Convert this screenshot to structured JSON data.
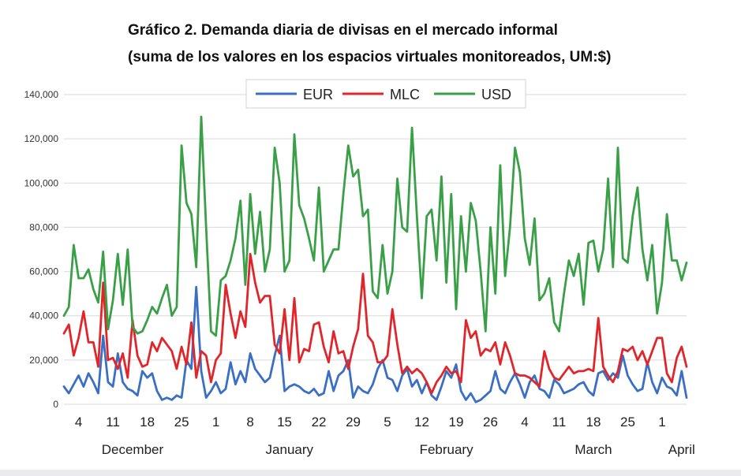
{
  "chart_data": {
    "type": "line",
    "title": "Gráfico 2. Demanda diaria de divisas en el mercado informal",
    "subtitle": "(suma de los valores en los espacios virtuales monitoreados, UM:$)",
    "xlabel": "",
    "ylabel": "",
    "ylim": [
      0,
      140000
    ],
    "y_ticks": [
      0,
      20000,
      40000,
      60000,
      80000,
      100000,
      120000,
      140000
    ],
    "y_tick_labels": [
      "0",
      "20,000",
      "40,000",
      "60,000",
      "80,000",
      "100,000",
      "120,000",
      "140,000"
    ],
    "x_start_day": 1,
    "x_end_day": 128,
    "x_ticks": [
      {
        "day": 4,
        "label": "4"
      },
      {
        "day": 11,
        "label": "11"
      },
      {
        "day": 18,
        "label": "18"
      },
      {
        "day": 25,
        "label": "25"
      },
      {
        "day": 32,
        "label": "1"
      },
      {
        "day": 39,
        "label": "8"
      },
      {
        "day": 46,
        "label": "15"
      },
      {
        "day": 53,
        "label": "22"
      },
      {
        "day": 60,
        "label": "29"
      },
      {
        "day": 67,
        "label": "5"
      },
      {
        "day": 74,
        "label": "12"
      },
      {
        "day": 81,
        "label": "19"
      },
      {
        "day": 88,
        "label": "26"
      },
      {
        "day": 95,
        "label": "4"
      },
      {
        "day": 102,
        "label": "11"
      },
      {
        "day": 109,
        "label": "18"
      },
      {
        "day": 116,
        "label": "25"
      },
      {
        "day": 123,
        "label": "1"
      }
    ],
    "month_labels": [
      {
        "day": 15,
        "label": "December"
      },
      {
        "day": 47,
        "label": "January"
      },
      {
        "day": 79,
        "label": "February"
      },
      {
        "day": 109,
        "label": "March"
      },
      {
        "day": 127,
        "label": "April"
      }
    ],
    "legend_position": "top",
    "grid": true,
    "series": [
      {
        "name": "EUR",
        "color": "#3a6fc4",
        "values": [
          8000,
          5000,
          9000,
          13000,
          8000,
          14000,
          10000,
          5000,
          31000,
          10000,
          8000,
          23000,
          10000,
          7000,
          6000,
          4000,
          15000,
          12000,
          14000,
          6000,
          2000,
          3000,
          2000,
          4000,
          3000,
          20000,
          16000,
          53000,
          15000,
          3000,
          6000,
          10000,
          5000,
          7000,
          19000,
          9000,
          15000,
          10000,
          23000,
          16000,
          13000,
          10000,
          12000,
          22000,
          31000,
          6000,
          8000,
          9000,
          8000,
          6000,
          5000,
          7000,
          4000,
          5000,
          15000,
          6000,
          13000,
          15000,
          20000,
          3000,
          8000,
          6000,
          5000,
          9000,
          16000,
          20000,
          12000,
          11000,
          6000,
          13000,
          16000,
          8000,
          11000,
          5000,
          10000,
          4000,
          2000,
          8000,
          15000,
          12000,
          18000,
          6000,
          2000,
          5000,
          1000,
          2000,
          4000,
          6000,
          15000,
          7000,
          5000,
          10000,
          14000,
          9000,
          3000,
          10000,
          13000,
          7000,
          6000,
          3000,
          11000,
          9000,
          5000,
          6000,
          7000,
          9000,
          10000,
          6000,
          4000,
          14000,
          15000,
          11000,
          14000,
          12000,
          22000,
          13000,
          9000,
          6000,
          7000,
          19000,
          10000,
          5000,
          12000,
          8000,
          7000,
          4000,
          15000,
          3000
        ]
      },
      {
        "name": "MLC",
        "color": "#e0262a",
        "values": [
          32000,
          36000,
          22000,
          30000,
          42000,
          28000,
          28000,
          17000,
          55000,
          20000,
          21000,
          16000,
          23000,
          12000,
          38000,
          22000,
          17000,
          18000,
          28000,
          24000,
          30000,
          27000,
          24000,
          16000,
          26000,
          18000,
          37000,
          12000,
          24000,
          22000,
          10000,
          20000,
          23000,
          54000,
          41000,
          30000,
          42000,
          35000,
          68000,
          55000,
          46000,
          49000,
          49000,
          27000,
          23000,
          43000,
          20000,
          48000,
          19000,
          25000,
          24000,
          36000,
          37000,
          26000,
          19000,
          33000,
          23000,
          24000,
          16000,
          26000,
          34000,
          59000,
          31000,
          28000,
          19000,
          19000,
          22000,
          43000,
          27000,
          14000,
          17000,
          14000,
          16000,
          14000,
          10000,
          5000,
          10000,
          13000,
          17000,
          14000,
          15000,
          10000,
          38000,
          30000,
          33000,
          22000,
          25000,
          24000,
          28000,
          18000,
          28000,
          22000,
          14000,
          13000,
          13000,
          12000,
          10000,
          8000,
          24000,
          16000,
          12000,
          11000,
          14000,
          17000,
          14000,
          15000,
          15000,
          16000,
          15000,
          39000,
          17000,
          13000,
          10000,
          15000,
          25000,
          24000,
          26000,
          20000,
          24000,
          18000,
          24000,
          30000,
          30000,
          14000,
          10000,
          21000,
          26000,
          17000
        ]
      },
      {
        "name": "USD",
        "color": "#3aa048",
        "values": [
          40000,
          44000,
          72000,
          57000,
          57000,
          61000,
          52000,
          46000,
          69000,
          34000,
          47000,
          68000,
          45000,
          70000,
          35000,
          32000,
          33000,
          38000,
          44000,
          41000,
          48000,
          54000,
          40000,
          44000,
          117000,
          91000,
          86000,
          62000,
          130000,
          80000,
          33000,
          31000,
          56000,
          58000,
          65000,
          75000,
          92000,
          54000,
          95000,
          68000,
          87000,
          60000,
          70000,
          116000,
          100000,
          60000,
          65000,
          122000,
          90000,
          84000,
          75000,
          65000,
          98000,
          60000,
          65000,
          70000,
          70000,
          95000,
          117000,
          103000,
          106000,
          85000,
          88000,
          51000,
          48000,
          72000,
          50000,
          60000,
          102000,
          80000,
          78000,
          125000,
          85000,
          48000,
          85000,
          88000,
          65000,
          103000,
          55000,
          95000,
          43000,
          85000,
          60000,
          91000,
          83000,
          60000,
          33000,
          80000,
          50000,
          108000,
          58000,
          80000,
          116000,
          105000,
          75000,
          63000,
          84000,
          47000,
          50000,
          57000,
          37000,
          33000,
          50000,
          65000,
          58000,
          68000,
          45000,
          73000,
          74000,
          60000,
          70000,
          102000,
          62000,
          116000,
          66000,
          64000,
          85000,
          98000,
          70000,
          56000,
          72000,
          41000,
          55000,
          86000,
          65000,
          65000,
          56000,
          64000
        ]
      }
    ]
  }
}
